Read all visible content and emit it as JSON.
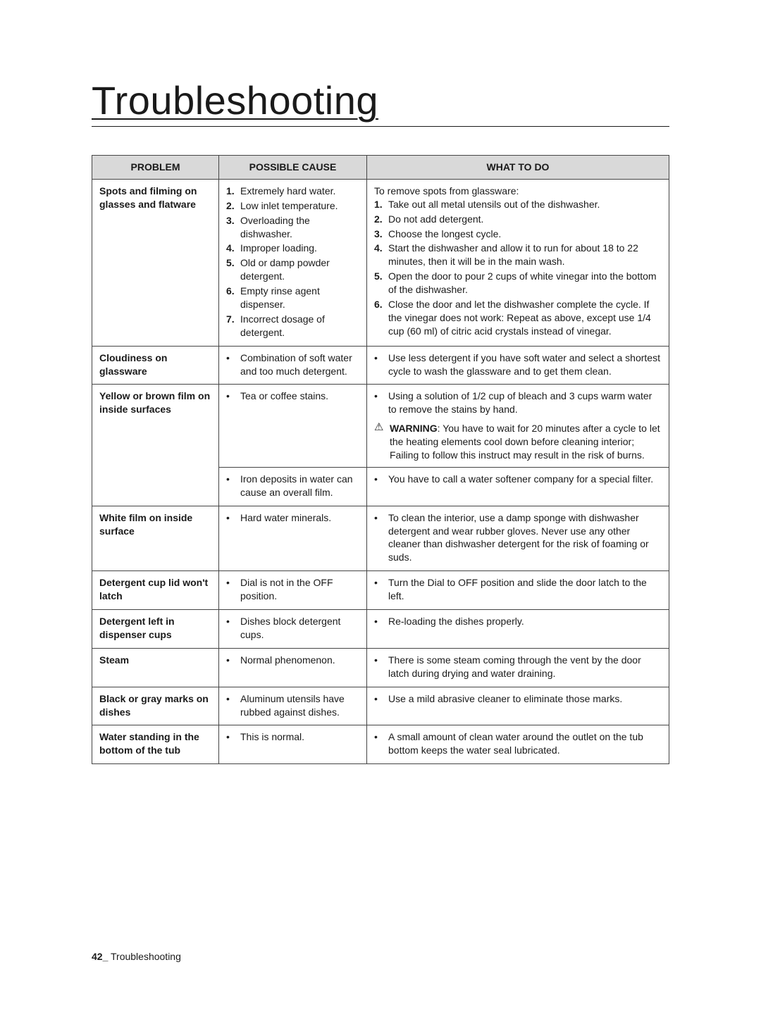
{
  "title": "Troubleshooting",
  "headers": {
    "problem": "PROBLEM",
    "cause": "POSSIBLE CAUSE",
    "todo": "WHAT TO DO"
  },
  "footer": {
    "page": "42_",
    "section": "Troubleshooting"
  },
  "rows": [
    {
      "id": "spots",
      "problem": "Spots and filming on glasses and flatware",
      "causes_numbered": [
        "Extremely hard water.",
        "Low inlet temperature.",
        "Overloading the dishwasher.",
        "Improper loading.",
        "Old or damp powder detergent.",
        "Empty rinse agent dispenser.",
        "Incorrect dosage of detergent."
      ],
      "todo_intro": "To remove spots from glassware:",
      "todo_numbered": [
        "Take out all metal utensils out of the dishwasher.",
        "Do not add detergent.",
        "Choose the longest cycle.",
        "Start the dishwasher and allow it to run for about 18 to 22 minutes, then it will be in the main wash.",
        "Open the door to pour 2 cups of white vinegar into the bottom of the dishwasher.",
        "Close the door and let the dishwasher complete the cycle. If the vinegar does not work: Repeat as above, except use 1/4 cup (60 ml) of citric acid crystals instead of vinegar."
      ]
    },
    {
      "id": "cloudiness",
      "problem": "Cloudiness on glassware",
      "cause_bullets": [
        "Combination of soft water and too much detergent."
      ],
      "todo_bullets": [
        "Use less detergent if you have soft water and select a shortest cycle to wash the glassware and to get them clean."
      ]
    },
    {
      "id": "yellow-brown-1",
      "problem": "Yellow or brown film on inside surfaces",
      "cause_bullets": [
        "Tea or coffee stains."
      ],
      "todo_bullets": [
        "Using a solution of 1/2 cup of bleach and 3 cups warm water to remove the stains by hand."
      ],
      "warning_label": "WARNING",
      "warning_text": ": You have to wait for 20 minutes after a cycle to let the heating elements cool down before cleaning interior; Failing to follow this instruct may result in the risk of burns.",
      "rowspan_problem": 2
    },
    {
      "id": "yellow-brown-2",
      "cause_bullets": [
        "Iron deposits in water can cause an overall film."
      ],
      "todo_bullets": [
        "You have to call a water softener company for a special filter."
      ]
    },
    {
      "id": "white-film",
      "problem": "White film on inside surface",
      "cause_bullets": [
        "Hard water minerals."
      ],
      "todo_bullets": [
        "To clean the interior, use a damp sponge with dishwasher detergent and wear rubber gloves. Never use any other cleaner than dishwasher detergent for the risk of foaming or suds."
      ]
    },
    {
      "id": "det-lid",
      "problem": "Detergent cup lid won't latch",
      "cause_bullets": [
        "Dial is not in the OFF position."
      ],
      "todo_bullets": [
        "Turn the Dial to OFF position and slide the door latch to the left."
      ]
    },
    {
      "id": "det-left",
      "problem": "Detergent left in dispenser cups",
      "cause_bullets": [
        "Dishes block detergent cups."
      ],
      "todo_bullets": [
        "Re-loading the dishes properly."
      ]
    },
    {
      "id": "steam",
      "problem": "Steam",
      "cause_bullets": [
        "Normal phenomenon."
      ],
      "todo_bullets": [
        "There is some steam coming through the vent by the door latch during drying and water draining."
      ]
    },
    {
      "id": "black-gray",
      "problem": "Black or gray marks on dishes",
      "cause_bullets": [
        "Aluminum utensils have rubbed against dishes."
      ],
      "todo_bullets": [
        "Use a mild abrasive cleaner to eliminate those marks."
      ]
    },
    {
      "id": "water-standing",
      "problem": "Water standing in the bottom of the tub",
      "cause_bullets": [
        "This is normal."
      ],
      "todo_bullets": [
        "A small amount of clean water around the outlet on the tub bottom keeps the water seal lubricated."
      ]
    }
  ]
}
